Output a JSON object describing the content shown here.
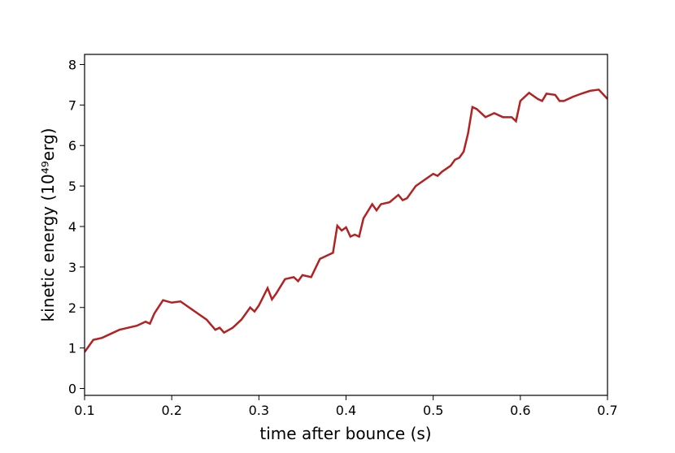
{
  "chart_data": {
    "type": "line",
    "xlabel": "time after bounce (s)",
    "ylabel": "kinetic energy (10⁴⁹erg)",
    "x": [
      0.1,
      0.11,
      0.12,
      0.13,
      0.14,
      0.15,
      0.16,
      0.17,
      0.175,
      0.18,
      0.19,
      0.2,
      0.21,
      0.22,
      0.23,
      0.24,
      0.25,
      0.255,
      0.26,
      0.27,
      0.28,
      0.29,
      0.295,
      0.3,
      0.31,
      0.315,
      0.32,
      0.33,
      0.34,
      0.345,
      0.35,
      0.36,
      0.37,
      0.38,
      0.385,
      0.39,
      0.395,
      0.4,
      0.405,
      0.41,
      0.415,
      0.42,
      0.43,
      0.435,
      0.44,
      0.45,
      0.46,
      0.465,
      0.47,
      0.48,
      0.49,
      0.5,
      0.505,
      0.51,
      0.52,
      0.525,
      0.53,
      0.535,
      0.54,
      0.545,
      0.55,
      0.56,
      0.565,
      0.57,
      0.58,
      0.59,
      0.595,
      0.6,
      0.61,
      0.62,
      0.625,
      0.63,
      0.64,
      0.645,
      0.65,
      0.66,
      0.67,
      0.68,
      0.69,
      0.7
    ],
    "series": [
      {
        "color": "#b22222",
        "values": [
          0.9,
          1.2,
          1.25,
          1.35,
          1.45,
          1.5,
          1.55,
          1.65,
          1.6,
          1.85,
          2.18,
          2.12,
          2.15,
          2.0,
          1.85,
          1.7,
          1.45,
          1.5,
          1.38,
          1.5,
          1.7,
          2.0,
          1.9,
          2.05,
          2.48,
          2.2,
          2.35,
          2.7,
          2.75,
          2.65,
          2.8,
          2.75,
          3.2,
          3.3,
          3.35,
          4.02,
          3.9,
          3.98,
          3.75,
          3.8,
          3.75,
          4.2,
          4.55,
          4.4,
          4.55,
          4.6,
          4.78,
          4.65,
          4.7,
          5.0,
          5.15,
          5.3,
          5.25,
          5.35,
          5.5,
          5.65,
          5.7,
          5.85,
          6.3,
          6.95,
          6.9,
          6.7,
          6.75,
          6.8,
          6.7,
          6.7,
          6.6,
          7.1,
          7.3,
          7.15,
          7.1,
          7.28,
          7.25,
          7.1,
          7.1,
          7.2,
          7.28,
          7.35,
          7.38,
          7.15
        ]
      }
    ],
    "xlim": [
      0.1,
      0.7
    ],
    "xticks": [
      0.1,
      0.2,
      0.3,
      0.4,
      0.5,
      0.6,
      0.7
    ],
    "ylim": [
      -0.17,
      8.25
    ],
    "yticks": [
      0,
      1,
      2,
      3,
      4,
      5,
      6,
      7,
      8
    ]
  }
}
